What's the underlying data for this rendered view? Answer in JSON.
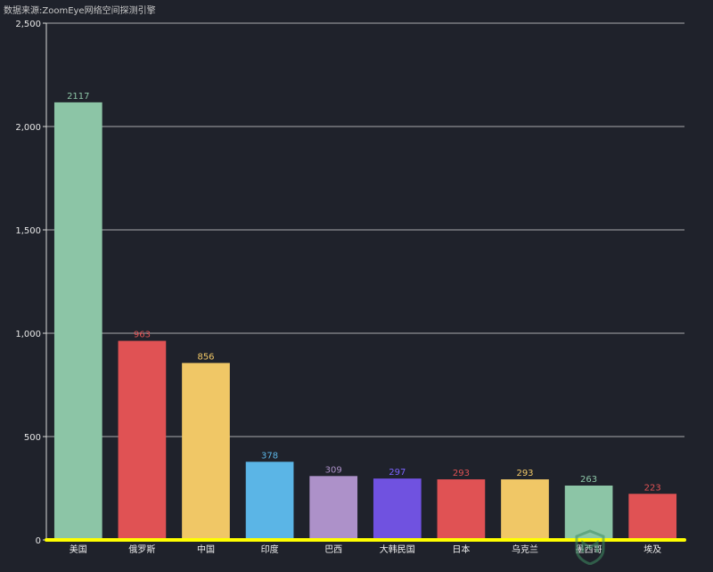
{
  "source_note": "数据来源:ZoomEye网络空间探测引擎",
  "chart_data": {
    "type": "bar",
    "title": "",
    "xlabel": "",
    "ylabel": "",
    "ylim": [
      0,
      2500
    ],
    "yticks": [
      0,
      500,
      1000,
      1500,
      2000,
      2500
    ],
    "ytick_labels": [
      "0",
      "500",
      "1,000",
      "1,500",
      "2,000",
      "2,500"
    ],
    "grid": true,
    "categories": [
      "美国",
      "俄罗斯",
      "中国",
      "印度",
      "巴西",
      "大韩民国",
      "日本",
      "乌克兰",
      "墨西哥",
      "埃及"
    ],
    "values": [
      2117,
      963,
      856,
      378,
      309,
      297,
      293,
      293,
      263,
      223
    ],
    "data_labels": [
      "2117",
      "963",
      "856",
      "378",
      "309",
      "297",
      "293",
      "293",
      "263",
      "223"
    ],
    "colors": [
      "#8cc5a6",
      "#e05254",
      "#f0c766",
      "#5bb5e6",
      "#ad91c9",
      "#7052e0",
      "#e05254",
      "#f0c766",
      "#8cc5a6",
      "#e05254"
    ],
    "label_colors": [
      "#8cc5a6",
      "#e05254",
      "#f0c766",
      "#5bb5e6",
      "#ad91c9",
      "#7b63ff",
      "#e05254",
      "#f0c766",
      "#8cc5a6",
      "#e05254"
    ],
    "baseline_color": "#ffff00"
  }
}
